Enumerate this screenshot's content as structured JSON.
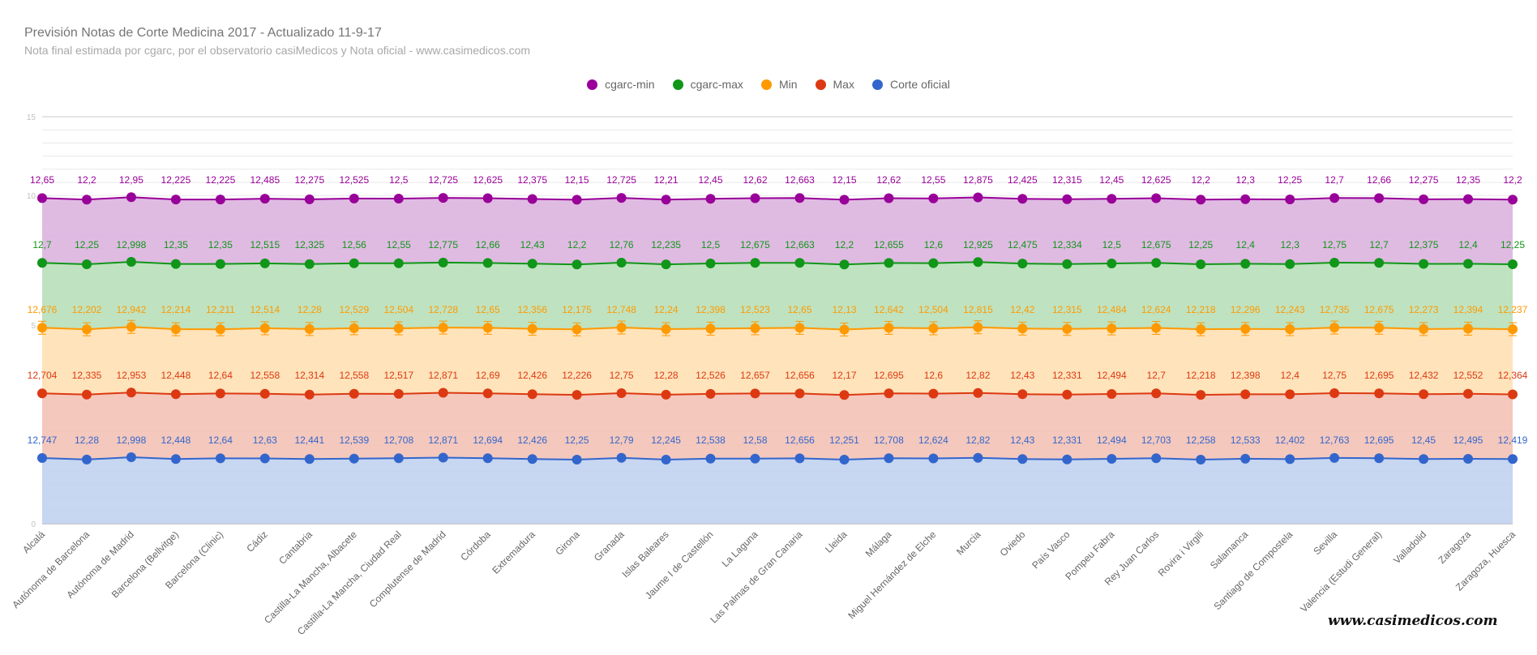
{
  "chart_data": {
    "type": "area",
    "title": "Previsión Notas de Corte Medicina 2017 - Actualizado 11-9-17",
    "subtitle": "Nota final estimada por cgarc, por el observatorio casiMedicos y Nota oficial  - www.casimedicos.com",
    "legend_position": "top",
    "categories": [
      "Alcalá",
      "Autónoma de Barcelona",
      "Autónoma de Madrid",
      "Barcelona (Bellvitge)",
      "Barcelona (Clinic)",
      "Cádiz",
      "Cantabria",
      "Castilla-La Mancha, Albacete",
      "Castilla-La Mancha, Ciudad Real",
      "Complutense de Madrid",
      "Córdoba",
      "Extremadura",
      "Girona",
      "Granada",
      "Islas Baleares",
      "Jaume I de Castellón",
      "La Laguna",
      "Las Palmas de Gran Canaria",
      "Lleida",
      "Málaga",
      "Miguel Hernández de Elche",
      "Murcia",
      "Oviedo",
      "País Vasco",
      "Pompeu Fabra",
      "Rey Juan Carlos",
      "Rovira i Virgili",
      "Salamanca",
      "Santiago de Compostela",
      "Sevilla",
      "Valencia (Estudi General)",
      "Valladolid",
      "Zaragoza",
      "Zaragoza, Huesca"
    ],
    "series": [
      {
        "name": "cgarc-min",
        "color": "#990099",
        "values": [
          12.65,
          12.2,
          12.95,
          12.225,
          12.225,
          12.485,
          12.275,
          12.525,
          12.5,
          12.725,
          12.625,
          12.375,
          12.15,
          12.725,
          12.21,
          12.45,
          12.62,
          12.663,
          12.15,
          12.62,
          12.55,
          12.875,
          12.425,
          12.315,
          12.45,
          12.625,
          12.2,
          12.3,
          12.25,
          12.7,
          12.66,
          12.275,
          12.35,
          12.2
        ],
        "labels": [
          "12,65",
          "12,2",
          "12,95",
          "12,225",
          "12,225",
          "12,485",
          "12,275",
          "12,525",
          "12,5",
          "12,725",
          "12,625",
          "12,375",
          "12,15",
          "12,725",
          "12,21",
          "12,45",
          "12,62",
          "12,663",
          "12,15",
          "12,62",
          "12,55",
          "12,875",
          "12,425",
          "12,315",
          "12,45",
          "12,625",
          "12,2",
          "12,3",
          "12,25",
          "12,7",
          "12,66",
          "12,275",
          "12,35",
          "12,2"
        ]
      },
      {
        "name": "cgarc-max",
        "color": "#109618",
        "values": [
          12.7,
          12.25,
          12.998,
          12.35,
          12.35,
          12.515,
          12.325,
          12.56,
          12.55,
          12.775,
          12.66,
          12.43,
          12.2,
          12.76,
          12.235,
          12.5,
          12.675,
          12.663,
          12.2,
          12.655,
          12.6,
          12.925,
          12.475,
          12.334,
          12.5,
          12.675,
          12.25,
          12.4,
          12.3,
          12.75,
          12.7,
          12.375,
          12.4,
          12.25
        ],
        "labels": [
          "12,7",
          "12,25",
          "12,998",
          "12,35",
          "12,35",
          "12,515",
          "12,325",
          "12,56",
          "12,55",
          "12,775",
          "12,66",
          "12,43",
          "12,2",
          "12,76",
          "12,235",
          "12,5",
          "12,675",
          "12,663",
          "12,2",
          "12,655",
          "12,6",
          "12,925",
          "12,475",
          "12,334",
          "12,5",
          "12,675",
          "12,25",
          "12,4",
          "12,3",
          "12,75",
          "12,7",
          "12,375",
          "12,4",
          "12,25"
        ]
      },
      {
        "name": "Min",
        "color": "#ff9900",
        "values": [
          12.676,
          12.202,
          12.942,
          12.214,
          12.211,
          12.514,
          12.28,
          12.529,
          12.504,
          12.728,
          12.65,
          12.356,
          12.175,
          12.748,
          12.24,
          12.398,
          12.523,
          12.65,
          12.13,
          12.642,
          12.504,
          12.815,
          12.42,
          12.315,
          12.484,
          12.624,
          12.218,
          12.296,
          12.243,
          12.735,
          12.675,
          12.273,
          12.394,
          12.237
        ],
        "labels": [
          "12,676",
          "12,202",
          "12,942",
          "12,214",
          "12,211",
          "12,514",
          "12,28",
          "12,529",
          "12,504",
          "12,728",
          "12,65",
          "12,356",
          "12,175",
          "12,748",
          "12,24",
          "12,398",
          "12,523",
          "12,65",
          "12,13",
          "12,642",
          "12,504",
          "12,815",
          "12,42",
          "12,315",
          "12,484",
          "12,624",
          "12,218",
          "12,296",
          "12,243",
          "12,735",
          "12,675",
          "12,273",
          "12,394",
          "12,237"
        ]
      },
      {
        "name": "Max",
        "color": "#dc3912",
        "values": [
          12.704,
          12.335,
          12.953,
          12.448,
          12.64,
          12.558,
          12.314,
          12.558,
          12.517,
          12.871,
          12.69,
          12.426,
          12.226,
          12.75,
          12.28,
          12.526,
          12.657,
          12.656,
          12.17,
          12.695,
          12.6,
          12.82,
          12.43,
          12.331,
          12.494,
          12.7,
          12.218,
          12.398,
          12.4,
          12.75,
          12.695,
          12.432,
          12.552,
          12.364
        ],
        "labels": [
          "12,704",
          "12,335",
          "12,953",
          "12,448",
          "12,64",
          "12,558",
          "12,314",
          "12,558",
          "12,517",
          "12,871",
          "12,69",
          "12,426",
          "12,226",
          "12,75",
          "12,28",
          "12,526",
          "12,657",
          "12,656",
          "12,17",
          "12,695",
          "12,6",
          "12,82",
          "12,43",
          "12,331",
          "12,494",
          "12,7",
          "12,218",
          "12,398",
          "12,4",
          "12,75",
          "12,695",
          "12,432",
          "12,552",
          "12,364"
        ]
      },
      {
        "name": "Corte oficial",
        "color": "#3366cc",
        "values": [
          12.747,
          12.28,
          12.998,
          12.448,
          12.64,
          12.63,
          12.441,
          12.539,
          12.708,
          12.871,
          12.694,
          12.426,
          12.25,
          12.79,
          12.245,
          12.538,
          12.58,
          12.656,
          12.251,
          12.708,
          12.624,
          12.82,
          12.43,
          12.331,
          12.494,
          12.703,
          12.258,
          12.533,
          12.402,
          12.763,
          12.695,
          12.45,
          12.495,
          12.419
        ],
        "labels": [
          "12,747",
          "12,28",
          "12,998",
          "12,448",
          "12,64",
          "12,63",
          "12,441",
          "12,539",
          "12,708",
          "12,871",
          "12,694",
          "12,426",
          "12,25",
          "12,79",
          "12,245",
          "12,538",
          "12,58",
          "12,656",
          "12,251",
          "12,708",
          "12,624",
          "12,82",
          "12,43",
          "12,331",
          "12,494",
          "12,703",
          "12,258",
          "12,533",
          "12,402",
          "12,763",
          "12,695",
          "12,45",
          "12,495",
          "12,419"
        ]
      }
    ],
    "grid": true,
    "error_bars_on": "Min"
  },
  "watermark": "www.casimedicos.com"
}
